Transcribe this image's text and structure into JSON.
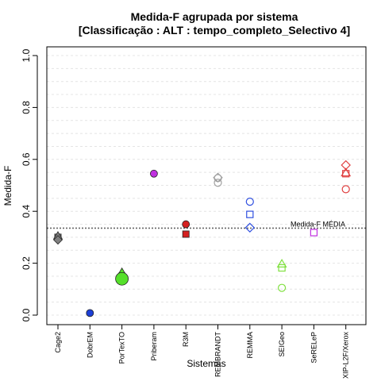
{
  "chart_data": {
    "type": "scatter",
    "title": "Medida-F agrupada por sistema",
    "subtitle": "[Classificação : ALT : tempo_completo_Selectivo 4]",
    "xlabel": "Sistemas",
    "ylabel": "Medida-F",
    "ylim": [
      0,
      1
    ],
    "yticks": [
      "0.0",
      "0.2",
      "0.4",
      "0.6",
      "0.8",
      "1.0"
    ],
    "grid": true,
    "categories": [
      "Cage2",
      "DobrEM",
      "PorTexTO",
      "Priberam",
      "R3M",
      "REMBRANDT",
      "REMMA",
      "SEIGeo",
      "SeRELeP",
      "XIP-L2F/Xerox"
    ],
    "reference_line": {
      "label": "Medida-F MÉDIA",
      "value": 0.335
    },
    "points": [
      {
        "category": "Cage2",
        "y": 0.3,
        "shape": "square",
        "color": "#808080",
        "filled": true
      },
      {
        "category": "Cage2",
        "y": 0.305,
        "shape": "triangle",
        "color": "#808080",
        "filled": true
      },
      {
        "category": "Cage2",
        "y": 0.29,
        "shape": "diamond",
        "color": "#808080",
        "filled": true
      },
      {
        "category": "DobrEM",
        "y": 0.008,
        "shape": "circle",
        "color": "#1c3fd6",
        "filled": true
      },
      {
        "category": "PorTexTO",
        "y": 0.165,
        "shape": "triangle",
        "color": "#55e02a",
        "filled": true
      },
      {
        "category": "PorTexTO",
        "y": 0.15,
        "shape": "square",
        "color": "#55e02a",
        "filled": true
      },
      {
        "category": "PorTexTO",
        "y": 0.14,
        "shape": "diamond",
        "color": "#55e02a",
        "filled": true
      },
      {
        "category": "PorTexTO",
        "y": 0.14,
        "shape": "circle",
        "color": "#55e02a",
        "filled": true,
        "large": true
      },
      {
        "category": "Priberam",
        "y": 0.545,
        "shape": "circle",
        "color": "#c030e0",
        "filled": true
      },
      {
        "category": "R3M",
        "y": 0.35,
        "shape": "circle",
        "color": "#d42020",
        "filled": true
      },
      {
        "category": "R3M",
        "y": 0.312,
        "shape": "square",
        "color": "#d42020",
        "filled": true
      },
      {
        "category": "REMBRANDT",
        "y": 0.53,
        "shape": "diamond",
        "color": "#a0a0a0",
        "filled": false
      },
      {
        "category": "REMBRANDT",
        "y": 0.528,
        "shape": "circle",
        "color": "#a0a0a0",
        "filled": false
      },
      {
        "category": "REMBRANDT",
        "y": 0.51,
        "shape": "circle",
        "color": "#a0a0a0",
        "filled": false
      },
      {
        "category": "REMMA",
        "y": 0.437,
        "shape": "circle",
        "color": "#3050e0",
        "filled": false
      },
      {
        "category": "REMMA",
        "y": 0.388,
        "shape": "square",
        "color": "#3050e0",
        "filled": false
      },
      {
        "category": "REMMA",
        "y": 0.337,
        "shape": "diamond",
        "color": "#3050e0",
        "filled": false
      },
      {
        "category": "SEIGeo",
        "y": 0.197,
        "shape": "triangle",
        "color": "#80e040",
        "filled": false
      },
      {
        "category": "SEIGeo",
        "y": 0.182,
        "shape": "square",
        "color": "#80e040",
        "filled": false
      },
      {
        "category": "SEIGeo",
        "y": 0.105,
        "shape": "circle",
        "color": "#80e040",
        "filled": false
      },
      {
        "category": "SeRELeP",
        "y": 0.318,
        "shape": "square",
        "color": "#c030e0",
        "filled": false
      },
      {
        "category": "XIP-L2F/Xerox",
        "y": 0.578,
        "shape": "diamond",
        "color": "#e04040",
        "filled": false
      },
      {
        "category": "XIP-L2F/Xerox",
        "y": 0.548,
        "shape": "triangle",
        "color": "#e04040",
        "filled": false
      },
      {
        "category": "XIP-L2F/Xerox",
        "y": 0.545,
        "shape": "square",
        "color": "#e04040",
        "filled": false
      },
      {
        "category": "XIP-L2F/Xerox",
        "y": 0.485,
        "shape": "circle",
        "color": "#e04040",
        "filled": false
      }
    ]
  }
}
